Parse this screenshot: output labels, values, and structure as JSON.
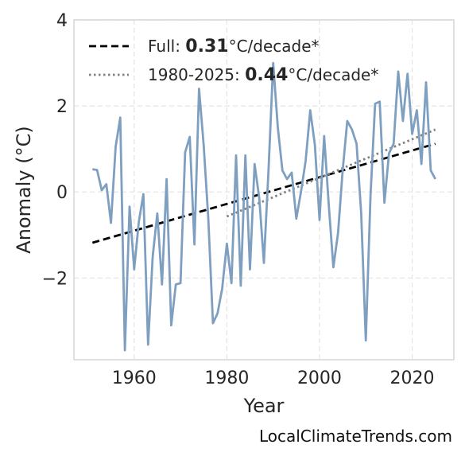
{
  "chart_data": {
    "type": "line",
    "xlabel": "Year",
    "ylabel": "Anomaly (°C)",
    "xlim": [
      1947,
      2029
    ],
    "ylim": [
      -3.9,
      4.0
    ],
    "x_ticks": [
      1960,
      1980,
      2000,
      2020
    ],
    "y_ticks": [
      -2,
      0,
      2,
      4
    ],
    "y_tick_labels": [
      "−2",
      "0",
      "2",
      "4"
    ],
    "grid": true,
    "legend_position": "top-left",
    "colors": {
      "series": "#7f9fc0",
      "full_trend": "#000000",
      "recent_trend": "#808080"
    },
    "series": [
      {
        "values_x": [
          1951,
          1952,
          1953,
          1954,
          1955,
          1956,
          1957,
          1958,
          1959,
          1960,
          1961,
          1962,
          1963,
          1964,
          1965,
          1966,
          1967,
          1968,
          1969,
          1970,
          1971,
          1972,
          1973,
          1974,
          1975,
          1976,
          1977,
          1978,
          1979,
          1980,
          1981,
          1982,
          1983,
          1984,
          1985,
          1986,
          1987,
          1988,
          1989,
          1990,
          1991,
          1992,
          1993,
          1994,
          1995,
          1996,
          1997,
          1998,
          1999,
          2000,
          2001,
          2002,
          2003,
          2004,
          2005,
          2006,
          2007,
          2008,
          2009,
          2010,
          2011,
          2012,
          2013,
          2014,
          2015,
          2016,
          2017,
          2018,
          2019,
          2020,
          2021,
          2022,
          2023,
          2024,
          2025
        ],
        "values_y": [
          0.53,
          0.51,
          0.04,
          0.18,
          -0.72,
          1.05,
          1.73,
          -3.68,
          -0.34,
          -1.8,
          -0.7,
          -0.05,
          -3.55,
          -1.5,
          -0.5,
          -2.15,
          0.3,
          -3.1,
          -2.15,
          -2.12,
          0.92,
          1.28,
          -1.22,
          2.4,
          1.1,
          -0.6,
          -3.05,
          -2.82,
          -2.25,
          -1.2,
          -2.12,
          0.85,
          -2.18,
          0.85,
          -1.8,
          0.65,
          -0.15,
          -1.65,
          0.5,
          3.0,
          1.5,
          0.5,
          0.3,
          0.45,
          -0.62,
          0.0,
          0.72,
          1.9,
          1.1,
          -0.65,
          1.3,
          -0.3,
          -1.75,
          -0.95,
          0.5,
          1.65,
          1.45,
          1.12,
          -0.5,
          -3.45,
          -0.1,
          2.05,
          2.1,
          -0.25,
          0.9,
          1.12,
          2.8,
          1.65,
          2.75,
          1.35,
          1.9,
          0.65,
          2.55,
          0.5,
          0.3
        ]
      }
    ],
    "trends": [
      {
        "label_prefix": "Full: ",
        "label_value": "0.31",
        "label_suffix": "°C/decade*",
        "style": "dashed",
        "x": [
          1951,
          2025
        ],
        "y": [
          -1.18,
          1.12
        ]
      },
      {
        "label_prefix": "1980-2025: ",
        "label_value": "0.44",
        "label_suffix": "°C/decade*",
        "style": "dotted",
        "x": [
          1980,
          2025
        ],
        "y": [
          -0.57,
          1.45
        ]
      }
    ]
  },
  "source_label": "LocalClimateTrends.com"
}
